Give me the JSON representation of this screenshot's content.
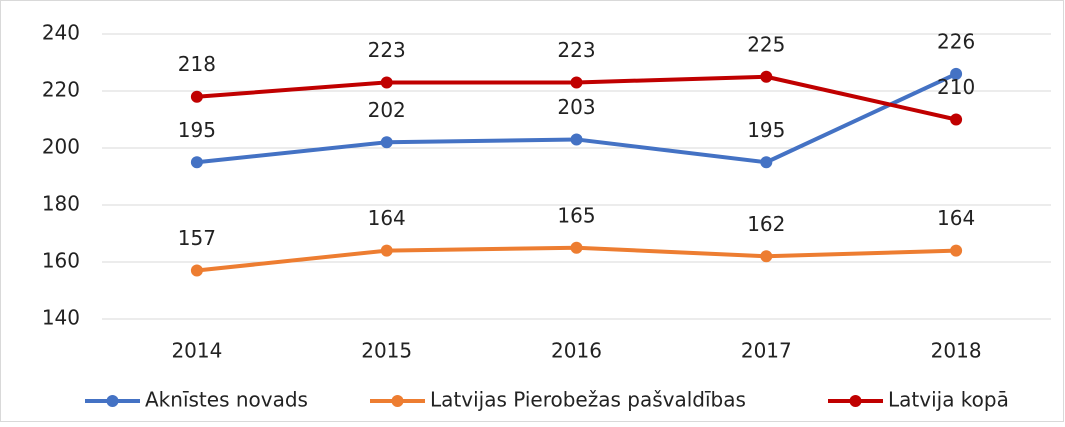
{
  "chart_data": {
    "type": "line",
    "categories": [
      "2014",
      "2015",
      "2016",
      "2017",
      "2018"
    ],
    "series": [
      {
        "name": "Aknīstes novads",
        "color": "#4472c4",
        "values": [
          195,
          202,
          203,
          195,
          226
        ]
      },
      {
        "name": "Latvijas Pierobežas pašvaldības",
        "color": "#ed7d31",
        "values": [
          157,
          164,
          165,
          162,
          164
        ]
      },
      {
        "name": "Latvija kopā",
        "color": "#c00000",
        "values": [
          218,
          223,
          223,
          225,
          210
        ]
      }
    ],
    "ylim": [
      140,
      240
    ],
    "yticks": [
      140,
      160,
      180,
      200,
      220,
      240
    ],
    "grid": true,
    "legend": "bottom"
  }
}
